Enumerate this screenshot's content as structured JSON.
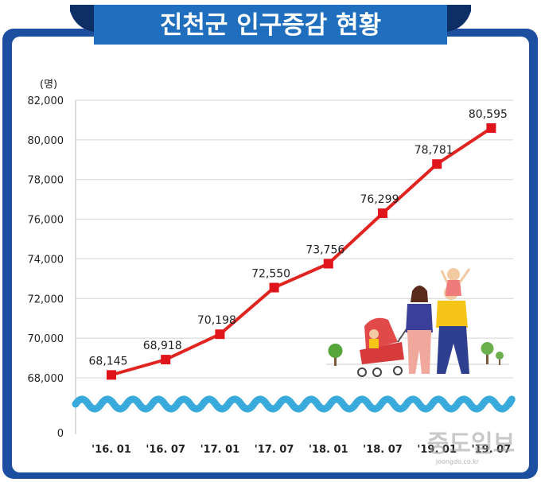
{
  "header": {
    "title": "진천군 인구증감 현황"
  },
  "watermark": {
    "main": "중도일보",
    "sub": "joongdo.co.kr"
  },
  "colors": {
    "frame": "#1c4fa0",
    "title_bg": "#1f6fbe",
    "title_dark": "#0e2f66",
    "line": "#e0241f",
    "marker": "#e0141b",
    "wave": "#3aa9dc",
    "grid": "#cfcfcf"
  },
  "chart_data": {
    "type": "line",
    "title": "진천군 인구증감 현황",
    "ylabel": "(명)",
    "xlabel": "",
    "categories": [
      "'16. 01",
      "'16. 07",
      "'17. 01",
      "'17. 07",
      "'18. 01",
      "'18. 07",
      "'19. 01",
      "'19. 07"
    ],
    "values": [
      68145,
      68918,
      70198,
      72550,
      73756,
      76299,
      78781,
      80595
    ],
    "value_labels": [
      "68,145",
      "68,918",
      "70,198",
      "72,550",
      "73,756",
      "76,299",
      "78,781",
      "80,595"
    ],
    "yticks": [
      {
        "value": 68000,
        "label": "68,000"
      },
      {
        "value": 70000,
        "label": "70,000"
      },
      {
        "value": 72000,
        "label": "72,000"
      },
      {
        "value": 74000,
        "label": "74,000"
      },
      {
        "value": 76000,
        "label": "76,000"
      },
      {
        "value": 78000,
        "label": "78,000"
      },
      {
        "value": 80000,
        "label": "80,000"
      },
      {
        "value": 82000,
        "label": "82,000"
      }
    ],
    "ylim": [
      68000,
      82000
    ],
    "y_zero_label": "0",
    "axis_break": true,
    "grid": true,
    "legend": "none"
  }
}
